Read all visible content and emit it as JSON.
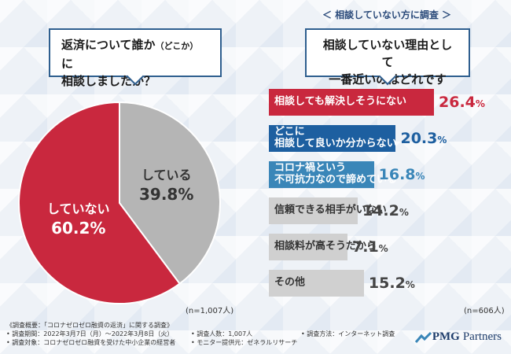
{
  "left_panel": {
    "question_line1": "返済について誰か",
    "question_small": "（どこか）",
    "question_line1_end": "に",
    "question_line2": "相談しましたか？",
    "n_note": "(n=1,007人)"
  },
  "right_panel": {
    "sub_heading": "＜ 相談していない方に調査 ＞",
    "question_line1": "相談していない理由として",
    "question_line2": "一番近いのはどれですか？",
    "n_note": "(n=606人)"
  },
  "chart_data": [
    {
      "type": "pie",
      "title": "返済について誰か（どこか）に相談しましたか？",
      "categories": [
        "していない",
        "している"
      ],
      "values": [
        60.2,
        39.8
      ],
      "unit": "%",
      "colors": [
        "#c9283e",
        "#b5b5b5"
      ]
    },
    {
      "type": "bar",
      "orientation": "horizontal",
      "title": "相談していない理由として一番近いのはどれですか？",
      "categories": [
        [
          "相談しても解決しそうにない"
        ],
        [
          "どこに",
          "相談して良いか分からない"
        ],
        [
          "コロナ禍という",
          "不可抗力なので諦めている"
        ],
        [
          "信頼できる相手がいない"
        ],
        [
          "相談料が高そうだから"
        ],
        [
          "その他"
        ]
      ],
      "values": [
        26.4,
        20.3,
        16.8,
        14.2,
        7.1,
        15.2
      ],
      "value_colors": [
        "#c9283e",
        "#1d5fa0",
        "#3a86b8",
        "#444444",
        "#444444",
        "#444444"
      ],
      "bar_colors": [
        "#c9283e",
        "#1d5fa0",
        "#3a86b8",
        "#d0d0d0",
        "#d0d0d0",
        "#d0d0d0"
      ],
      "text_colors": [
        "#ffffff",
        "#ffffff",
        "#ffffff",
        "#333333",
        "#333333",
        "#333333"
      ],
      "unit": "%",
      "xlim": [
        0,
        26.4
      ]
    }
  ],
  "footer": {
    "title": "《調査概要：「コロナゼロゼロ融資の返済」に関する調査》",
    "period": "• 調査期間：2022年3月7日（月）〜2022年3月8日（火）",
    "count": "• 調査人数：1,007人",
    "method": "• 調査方法：インターネット調査",
    "target": "• 調査対象：コロナゼロゼロ融資を受けた中小企業の経営者",
    "provider": "• モニター提供元：ゼネラルリサーチ"
  },
  "logo": {
    "pmg": "PMG",
    "partners": "Partners"
  }
}
